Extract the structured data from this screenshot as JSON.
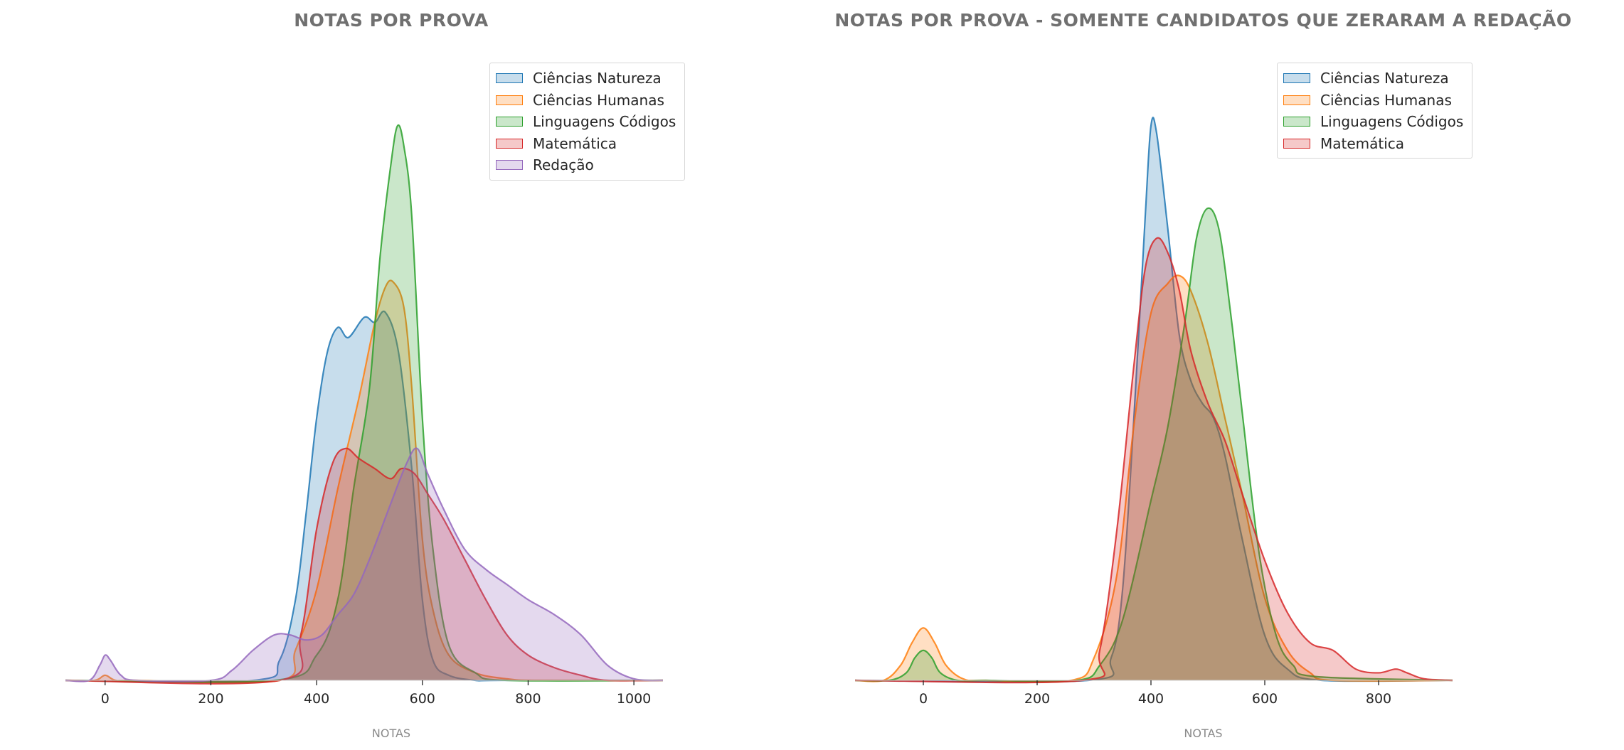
{
  "chart_data": [
    {
      "type": "area",
      "title": "NOTAS POR PROVA",
      "xlabel": "NOTAS",
      "ylabel": "",
      "xlim": [
        -75,
        1055
      ],
      "xticks": [
        0,
        200,
        400,
        600,
        800,
        1000
      ],
      "grid": false,
      "legend_position": "top-right",
      "y_axis_visible": false,
      "series": [
        {
          "name": "Ciências Natureza",
          "color": "#1f77b4",
          "x": [
            -75,
            280,
            330,
            360,
            380,
            400,
            420,
            440,
            460,
            490,
            510,
            530,
            555,
            580,
            600,
            620,
            650,
            700,
            750,
            1055
          ],
          "y": [
            0,
            0,
            0.04,
            0.16,
            0.33,
            0.52,
            0.65,
            0.7,
            0.68,
            0.72,
            0.71,
            0.73,
            0.65,
            0.42,
            0.16,
            0.04,
            0.01,
            0,
            0,
            0
          ]
        },
        {
          "name": "Ciências Humanas",
          "color": "#ff7f0e",
          "x": [
            -75,
            -20,
            0,
            20,
            60,
            330,
            360,
            400,
            440,
            480,
            510,
            530,
            545,
            565,
            580,
            600,
            620,
            650,
            700,
            760,
            820,
            1055
          ],
          "y": [
            0,
            0,
            0.01,
            0,
            0,
            0,
            0.06,
            0.18,
            0.38,
            0.56,
            0.71,
            0.78,
            0.79,
            0.74,
            0.58,
            0.28,
            0.14,
            0.05,
            0.015,
            0.003,
            0,
            0
          ]
        },
        {
          "name": "Linguagens Códigos",
          "color": "#2ca02c",
          "x": [
            -75,
            320,
            400,
            440,
            470,
            500,
            520,
            540,
            553,
            565,
            580,
            600,
            620,
            650,
            700,
            760,
            1055
          ],
          "y": [
            0,
            0,
            0.05,
            0.16,
            0.38,
            0.58,
            0.84,
            1.02,
            1.1,
            1.06,
            0.92,
            0.52,
            0.26,
            0.07,
            0.015,
            0,
            0
          ]
        },
        {
          "name": "Matemática",
          "color": "#d62728",
          "x": [
            -75,
            330,
            370,
            400,
            430,
            455,
            480,
            510,
            540,
            560,
            585,
            610,
            640,
            680,
            720,
            760,
            800,
            850,
            900,
            950,
            1055
          ],
          "y": [
            0,
            0,
            0.09,
            0.3,
            0.43,
            0.46,
            0.44,
            0.42,
            0.4,
            0.42,
            0.41,
            0.37,
            0.32,
            0.24,
            0.16,
            0.09,
            0.05,
            0.025,
            0.01,
            0,
            0
          ]
        },
        {
          "name": "Redação",
          "color": "#9467bd",
          "x": [
            -75,
            -30,
            -10,
            0,
            10,
            30,
            60,
            200,
            240,
            280,
            320,
            350,
            380,
            410,
            440,
            470,
            500,
            540,
            570,
            590,
            610,
            640,
            680,
            720,
            760,
            800,
            850,
            900,
            950,
            1000,
            1055
          ],
          "y": [
            0,
            0,
            0.03,
            0.05,
            0.04,
            0.01,
            0,
            0,
            0.02,
            0.06,
            0.09,
            0.09,
            0.08,
            0.09,
            0.13,
            0.17,
            0.24,
            0.35,
            0.43,
            0.46,
            0.41,
            0.34,
            0.26,
            0.22,
            0.19,
            0.16,
            0.13,
            0.09,
            0.03,
            0.003,
            0
          ]
        }
      ]
    },
    {
      "type": "area",
      "title": "NOTAS POR PROVA - SOMENTE CANDIDATOS QUE ZERARAM A REDAÇÃO",
      "xlabel": "NOTAS",
      "ylabel": "",
      "xlim": [
        -120,
        930
      ],
      "xticks": [
        0,
        200,
        400,
        600,
        800
      ],
      "grid": false,
      "legend_position": "top-right",
      "y_axis_visible": false,
      "series": [
        {
          "name": "Ciências Natureza",
          "color": "#1f77b4",
          "x": [
            -120,
            290,
            330,
            350,
            370,
            390,
            400,
            410,
            430,
            450,
            470,
            490,
            510,
            530,
            560,
            600,
            640,
            700,
            930
          ],
          "y": [
            0,
            0,
            0.03,
            0.12,
            0.35,
            0.62,
            0.74,
            0.73,
            0.6,
            0.46,
            0.4,
            0.37,
            0.35,
            0.3,
            0.19,
            0.06,
            0.015,
            0,
            0
          ]
        },
        {
          "name": "Ciências Humanas",
          "color": "#ff7f0e",
          "x": [
            -120,
            -70,
            -40,
            -20,
            0,
            20,
            40,
            70,
            110,
            260,
            300,
            340,
            370,
            400,
            430,
            450,
            470,
            500,
            530,
            560,
            600,
            640,
            680,
            720,
            930
          ],
          "y": [
            0,
            0,
            0.02,
            0.05,
            0.07,
            0.05,
            0.02,
            0.002,
            0,
            0,
            0.03,
            0.14,
            0.34,
            0.49,
            0.53,
            0.54,
            0.52,
            0.45,
            0.35,
            0.25,
            0.11,
            0.04,
            0.01,
            0,
            0
          ]
        },
        {
          "name": "Linguagens Códigos",
          "color": "#2ca02c",
          "x": [
            -120,
            -60,
            -30,
            -15,
            0,
            15,
            30,
            60,
            110,
            270,
            310,
            350,
            400,
            430,
            460,
            480,
            500,
            520,
            540,
            560,
            590,
            620,
            650,
            690,
            930
          ],
          "y": [
            0,
            0,
            0.01,
            0.03,
            0.04,
            0.03,
            0.01,
            0,
            0,
            0,
            0.02,
            0.08,
            0.24,
            0.34,
            0.48,
            0.59,
            0.63,
            0.6,
            0.49,
            0.36,
            0.17,
            0.06,
            0.02,
            0.005,
            0
          ]
        },
        {
          "name": "Matemática",
          "color": "#d62728",
          "x": [
            -120,
            280,
            310,
            340,
            370,
            390,
            410,
            430,
            450,
            470,
            500,
            530,
            560,
            600,
            640,
            680,
            720,
            760,
            800,
            830,
            850,
            880,
            930
          ],
          "y": [
            0,
            0,
            0.04,
            0.2,
            0.42,
            0.55,
            0.59,
            0.57,
            0.52,
            0.44,
            0.37,
            0.32,
            0.25,
            0.16,
            0.09,
            0.05,
            0.04,
            0.015,
            0.01,
            0.015,
            0.01,
            0.002,
            0
          ]
        }
      ]
    }
  ]
}
